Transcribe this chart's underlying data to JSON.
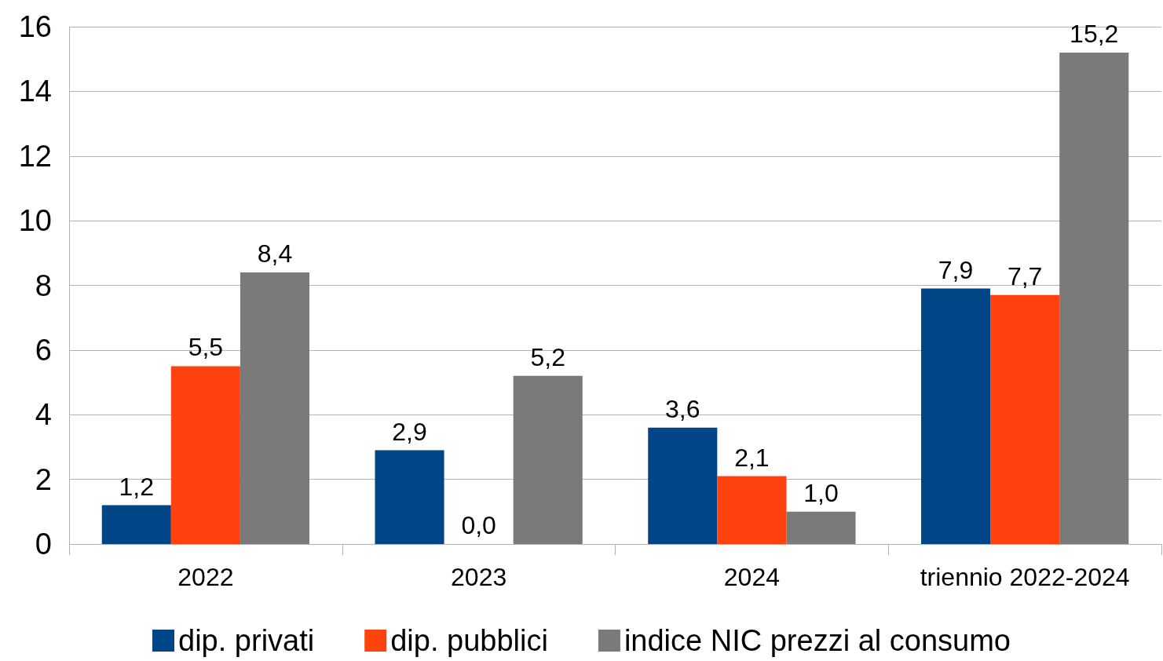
{
  "chart_data": {
    "type": "bar",
    "categories": [
      "2022",
      "2023",
      "2024",
      "triennio 2022-2024"
    ],
    "series": [
      {
        "name": "dip. privati",
        "color": "#004586",
        "values": [
          1.2,
          2.9,
          3.6,
          7.9
        ],
        "value_labels": [
          "1,2",
          "2,9",
          "3,6",
          "7,9"
        ]
      },
      {
        "name": "dip. pubblici",
        "color": "#ff420e",
        "values": [
          5.5,
          0.0,
          2.1,
          7.7
        ],
        "value_labels": [
          "5,5",
          "0,0",
          "2,1",
          "7,7"
        ]
      },
      {
        "name": "indice NIC prezzi al consumo",
        "color": "#7a7a7a",
        "values": [
          8.4,
          5.2,
          1.0,
          15.2
        ],
        "value_labels": [
          "8,4",
          "5,2",
          "1,0",
          "15,2"
        ]
      }
    ],
    "ylim": [
      0,
      16
    ],
    "yticks": [
      0,
      2,
      4,
      6,
      8,
      10,
      12,
      14,
      16
    ],
    "grid": "y",
    "legend": "bottom"
  }
}
